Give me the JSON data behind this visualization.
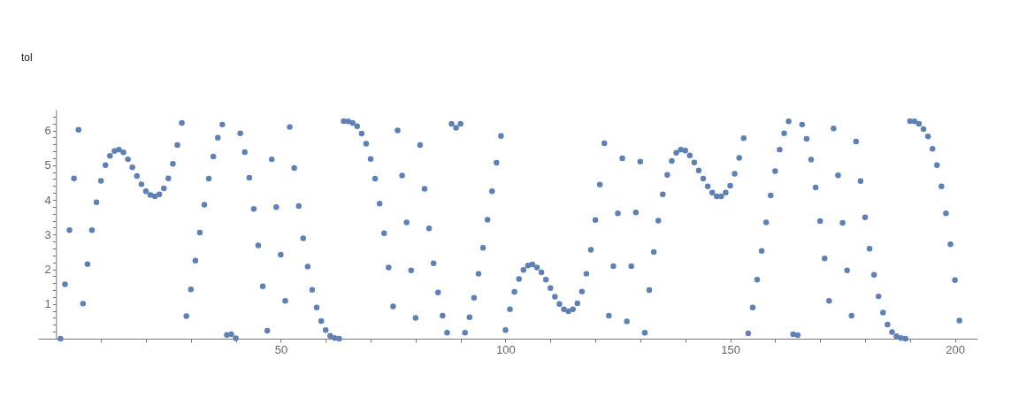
{
  "chart_data": {
    "type": "scatter",
    "annotations": [
      "tol"
    ],
    "marker": "circle",
    "xlim": [
      -4,
      205
    ],
    "ylim": [
      0,
      6.6
    ],
    "xticks": [
      {
        "value": 10,
        "label": null
      },
      {
        "value": 20,
        "label": null
      },
      {
        "value": 30,
        "label": null
      },
      {
        "value": 40,
        "label": null
      },
      50,
      {
        "value": 60,
        "label": null
      },
      {
        "value": 70,
        "label": null
      },
      {
        "value": 80,
        "label": null
      },
      {
        "value": 90,
        "label": null
      },
      100,
      {
        "value": 110,
        "label": null
      },
      {
        "value": 120,
        "label": null
      },
      {
        "value": 130,
        "label": null
      },
      {
        "value": 140,
        "label": null
      },
      150,
      {
        "value": 160,
        "label": null
      },
      {
        "value": 170,
        "label": null
      },
      {
        "value": 180,
        "label": null
      },
      {
        "value": 190,
        "label": null
      },
      200
    ],
    "yticks": [
      {
        "value": 0.2,
        "label": null
      },
      {
        "value": 0.4,
        "label": null
      },
      {
        "value": 0.6,
        "label": null
      },
      {
        "value": 0.8,
        "label": null
      },
      1,
      {
        "value": 1.2,
        "label": null
      },
      {
        "value": 1.4,
        "label": null
      },
      {
        "value": 1.6,
        "label": null
      },
      {
        "value": 1.8,
        "label": null
      },
      2,
      {
        "value": 2.2,
        "label": null
      },
      {
        "value": 2.4,
        "label": null
      },
      {
        "value": 2.6,
        "label": null
      },
      {
        "value": 2.8,
        "label": null
      },
      3,
      {
        "value": 3.2,
        "label": null
      },
      {
        "value": 3.4,
        "label": null
      },
      {
        "value": 3.6,
        "label": null
      },
      {
        "value": 3.8,
        "label": null
      },
      4,
      {
        "value": 4.2,
        "label": null
      },
      {
        "value": 4.4,
        "label": null
      },
      {
        "value": 4.6,
        "label": null
      },
      {
        "value": 4.8,
        "label": null
      },
      5,
      {
        "value": 5.2,
        "label": null
      },
      {
        "value": 5.4,
        "label": null
      },
      {
        "value": 5.6,
        "label": null
      },
      {
        "value": 5.8,
        "label": null
      },
      6,
      {
        "value": 6.2,
        "label": null
      },
      {
        "value": 6.4,
        "label": null
      }
    ],
    "x": [
      1,
      2,
      3,
      4,
      5,
      6,
      7,
      8,
      9,
      10,
      11,
      12,
      13,
      14,
      15,
      16,
      17,
      18,
      19,
      20,
      21,
      22,
      23,
      24,
      25,
      26,
      27,
      28,
      29,
      30,
      31,
      32,
      33,
      34,
      35,
      36,
      37,
      38,
      39,
      40,
      41,
      42,
      43,
      44,
      45,
      46,
      47,
      48,
      49,
      50,
      51,
      52,
      53,
      54,
      55,
      56,
      57,
      58,
      59,
      60,
      61,
      62,
      63,
      64,
      65,
      66,
      67,
      68,
      69,
      70,
      71,
      72,
      73,
      74,
      75,
      76,
      77,
      78,
      79,
      80,
      81,
      82,
      83,
      84,
      85,
      86,
      87,
      88,
      89,
      90,
      91,
      92,
      93,
      94,
      95,
      96,
      97,
      98,
      99,
      100,
      101,
      102,
      103,
      104,
      105,
      106,
      107,
      108,
      109,
      110,
      111,
      112,
      113,
      114,
      115,
      116,
      117,
      118,
      119,
      120,
      121,
      122,
      123,
      124,
      125,
      126,
      127,
      128,
      129,
      130,
      131,
      132,
      133,
      134,
      135,
      136,
      137,
      138,
      139,
      140,
      141,
      142,
      143,
      144,
      145,
      146,
      147,
      148,
      149,
      150,
      151,
      152,
      153,
      154,
      155,
      156,
      157,
      158,
      159,
      160,
      161,
      162,
      163,
      164,
      165,
      166,
      167,
      168,
      169,
      170,
      171,
      172,
      173,
      174,
      175,
      176,
      177,
      178,
      179,
      180,
      181,
      182,
      183,
      184,
      185,
      186,
      187,
      188,
      189,
      190,
      191,
      192,
      193,
      194,
      195,
      196,
      197,
      198,
      199,
      200,
      201
    ],
    "series": [
      {
        "color": "#5e81b5",
        "values": [
          0.0,
          1.57,
          3.13,
          4.62,
          6.02,
          1.01,
          2.15,
          3.13,
          3.93,
          4.55,
          5.0,
          5.27,
          5.41,
          5.45,
          5.37,
          5.17,
          4.94,
          4.69,
          4.45,
          4.25,
          4.14,
          4.1,
          4.16,
          4.33,
          4.62,
          5.04,
          5.58,
          6.22,
          0.65,
          1.42,
          2.25,
          3.06,
          3.86,
          4.61,
          5.25,
          5.79,
          6.17,
          0.11,
          0.13,
          0.01,
          5.92,
          5.38,
          4.64,
          3.74,
          2.69,
          1.51,
          0.23,
          5.17,
          3.79,
          2.42,
          1.09,
          6.1,
          4.92,
          3.82,
          2.89,
          2.08,
          1.41,
          0.9,
          0.51,
          0.25,
          0.08,
          0.02,
          0.0,
          6.27,
          6.26,
          6.22,
          6.12,
          5.91,
          5.62,
          5.18,
          4.61,
          3.89,
          3.04,
          2.05,
          0.93,
          6.0,
          4.7,
          3.35,
          1.97,
          0.6,
          5.58,
          4.32,
          3.18,
          2.17,
          1.33,
          0.66,
          0.17,
          6.19,
          6.08,
          6.19,
          0.17,
          0.62,
          1.18,
          1.87,
          2.62,
          3.43,
          4.25,
          5.07,
          5.84,
          0.25,
          0.85,
          1.35,
          1.72,
          1.98,
          2.11,
          2.14,
          2.05,
          1.91,
          1.7,
          1.46,
          1.21,
          1.0,
          0.85,
          0.79,
          0.85,
          1.02,
          1.36,
          1.87,
          2.56,
          3.42,
          4.44,
          5.63,
          0.66,
          2.09,
          3.61,
          5.2,
          0.5,
          2.09,
          3.64,
          5.1,
          0.17,
          1.4,
          2.5,
          3.4,
          4.16,
          4.72,
          5.12,
          5.36,
          5.45,
          5.42,
          5.28,
          5.08,
          4.85,
          4.61,
          4.39,
          4.21,
          4.1,
          4.1,
          4.21,
          4.41,
          4.75,
          5.21,
          5.78,
          0.15,
          0.9,
          1.7,
          2.53,
          3.35,
          4.13,
          4.83,
          5.45,
          5.92,
          6.26,
          0.13,
          0.1,
          6.17,
          5.76,
          5.16,
          4.36,
          3.39,
          2.31,
          1.09,
          6.06,
          4.71,
          3.34,
          1.97,
          0.66,
          5.68,
          4.54,
          3.5,
          2.59,
          1.84,
          1.22,
          0.75,
          0.41,
          0.19,
          0.07,
          0.02,
          0.0,
          6.27,
          6.26,
          6.19,
          6.04,
          5.83,
          5.47,
          5.0,
          4.39,
          3.61,
          2.72,
          1.69,
          0.52
        ]
      }
    ]
  }
}
